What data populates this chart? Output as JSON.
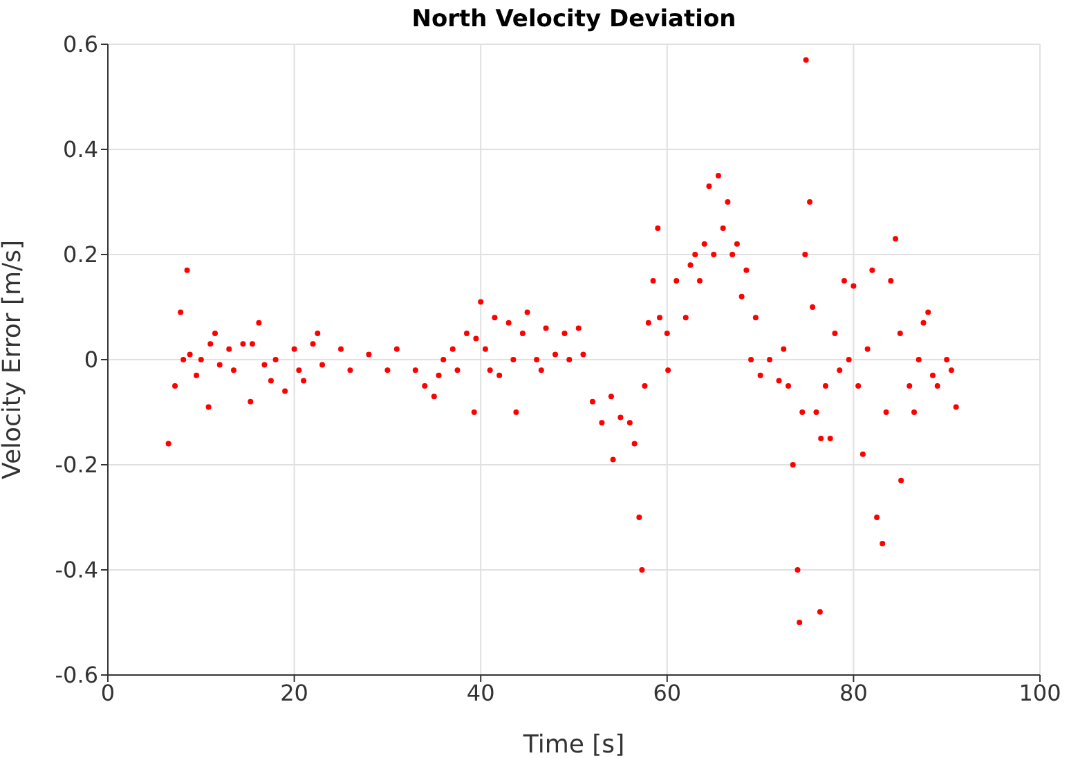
{
  "chart_data": {
    "type": "scatter",
    "title": "North Velocity Deviation",
    "xlabel": "Time [s]",
    "ylabel": "Velocity Error [m/s]",
    "xlim": [
      0,
      100
    ],
    "xticks": [
      0,
      20,
      40,
      60,
      80,
      100
    ],
    "ylim": [
      -0.6,
      0.6
    ],
    "yticks": [
      -0.6,
      -0.4,
      -0.2,
      0,
      0.2,
      0.4,
      0.6
    ],
    "grid": true,
    "marker": "circle",
    "series": [
      {
        "color": "#ff0000",
        "x": [
          6.5,
          7.2,
          7.8,
          8.1,
          8.5,
          8.8,
          9.5,
          10,
          10.8,
          11,
          11.5,
          12,
          13,
          13.5,
          14.5,
          15.3,
          15.5,
          16.2,
          16.8,
          17.5,
          18,
          19,
          20,
          20.5,
          21,
          22,
          22.5,
          23,
          25,
          26,
          28,
          30,
          31,
          33,
          34,
          35,
          35.5,
          36,
          37,
          37.5,
          38.5,
          39.3,
          39.5,
          40,
          40.5,
          41,
          41.5,
          42,
          43,
          43.5,
          43.8,
          44.5,
          45,
          46,
          46.5,
          47,
          48,
          49,
          49.5,
          50.5,
          51,
          52,
          53,
          54,
          54.2,
          55,
          56,
          56.5,
          57,
          57.3,
          57.6,
          58,
          58.5,
          59,
          59.2,
          60,
          60.1,
          61,
          62,
          62.5,
          63,
          63.5,
          64,
          64.5,
          65,
          65.5,
          66,
          66.5,
          67,
          67.5,
          68,
          68.5,
          69,
          69.5,
          70,
          71,
          72,
          72.5,
          73,
          73.5,
          74,
          74.2,
          74.5,
          74.8,
          74.9,
          75.3,
          75.6,
          76,
          76.4,
          76.5,
          77,
          77.5,
          78,
          78.5,
          79,
          79.5,
          80,
          80.5,
          81,
          81.5,
          82,
          82.5,
          83.1,
          83.5,
          84,
          84.5,
          85,
          85.1,
          86,
          86.5,
          87,
          87.5,
          88,
          88.5,
          89,
          90,
          90.5,
          91
        ],
        "values": [
          -0.16,
          -0.05,
          0.09,
          0.0,
          0.17,
          0.01,
          -0.03,
          0.0,
          -0.09,
          0.03,
          0.05,
          -0.01,
          0.02,
          -0.02,
          0.03,
          -0.08,
          0.03,
          0.07,
          -0.01,
          -0.04,
          0.0,
          -0.06,
          0.02,
          -0.02,
          -0.04,
          0.03,
          0.05,
          -0.01,
          0.02,
          -0.02,
          0.01,
          -0.02,
          0.02,
          -0.02,
          -0.05,
          -0.07,
          -0.03,
          0.0,
          0.02,
          -0.02,
          0.05,
          -0.1,
          0.04,
          0.11,
          0.02,
          -0.02,
          0.08,
          -0.03,
          0.07,
          0.0,
          -0.1,
          0.05,
          0.09,
          0.0,
          -0.02,
          0.06,
          0.01,
          0.05,
          0.0,
          0.06,
          0.01,
          -0.08,
          -0.12,
          -0.07,
          -0.19,
          -0.11,
          -0.12,
          -0.16,
          -0.3,
          -0.4,
          -0.05,
          0.07,
          0.15,
          0.25,
          0.08,
          0.05,
          -0.02,
          0.15,
          0.08,
          0.18,
          0.2,
          0.15,
          0.22,
          0.33,
          0.2,
          0.35,
          0.25,
          0.3,
          0.2,
          0.22,
          0.12,
          0.17,
          0.0,
          0.08,
          -0.03,
          0.0,
          -0.04,
          0.02,
          -0.05,
          -0.2,
          -0.4,
          -0.5,
          -0.1,
          0.2,
          0.57,
          0.3,
          0.1,
          -0.1,
          -0.48,
          -0.15,
          -0.05,
          -0.15,
          0.05,
          -0.02,
          0.15,
          0.0,
          0.14,
          -0.05,
          -0.18,
          0.02,
          0.17,
          -0.3,
          -0.35,
          -0.1,
          0.15,
          0.23,
          0.05,
          -0.23,
          -0.05,
          -0.1,
          0.0,
          0.07,
          0.09,
          -0.03,
          -0.05,
          0.0,
          -0.02,
          -0.09
        ]
      }
    ]
  }
}
